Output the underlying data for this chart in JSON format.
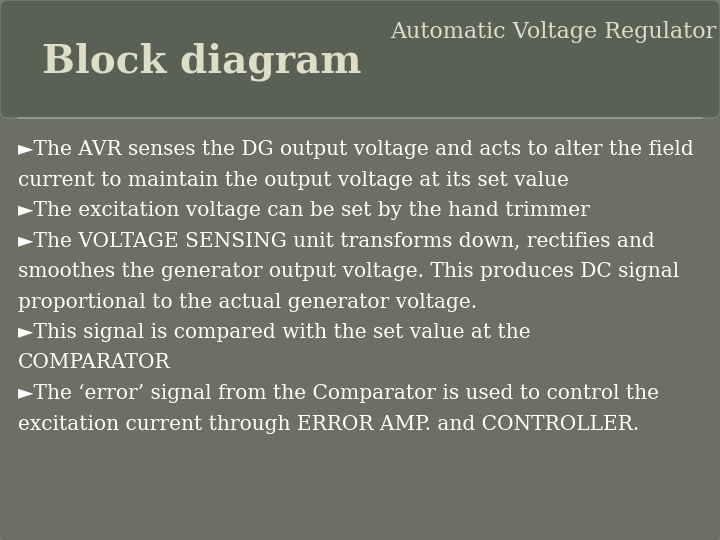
{
  "bg_color": "#6b7063",
  "header_bg": "#5a6054",
  "title_left": "Block diagram",
  "title_right": "Automatic Voltage Regulator",
  "title_left_color": "#ddddc8",
  "title_right_color": "#ddddc8",
  "line_color": "#9a9e8a",
  "body_text_color": "#ffffff",
  "body_lines": [
    "►The AVR senses the DG output voltage and acts to alter the field",
    "current to maintain the output voltage at its set value",
    "►The excitation voltage can be set by the hand trimmer",
    "►The VOLTAGE SENSING unit transforms down, rectifies and",
    "smoothes the generator output voltage. This produces DC signal",
    "proportional to the actual generator voltage.",
    "►This signal is compared with the set value at the",
    "COMPARATOR",
    "►The ‘error’ signal from the Comparator is used to control the",
    "excitation current through ERROR AMP. and CONTROLLER."
  ],
  "figsize": [
    7.2,
    5.4
  ],
  "dpi": 100
}
